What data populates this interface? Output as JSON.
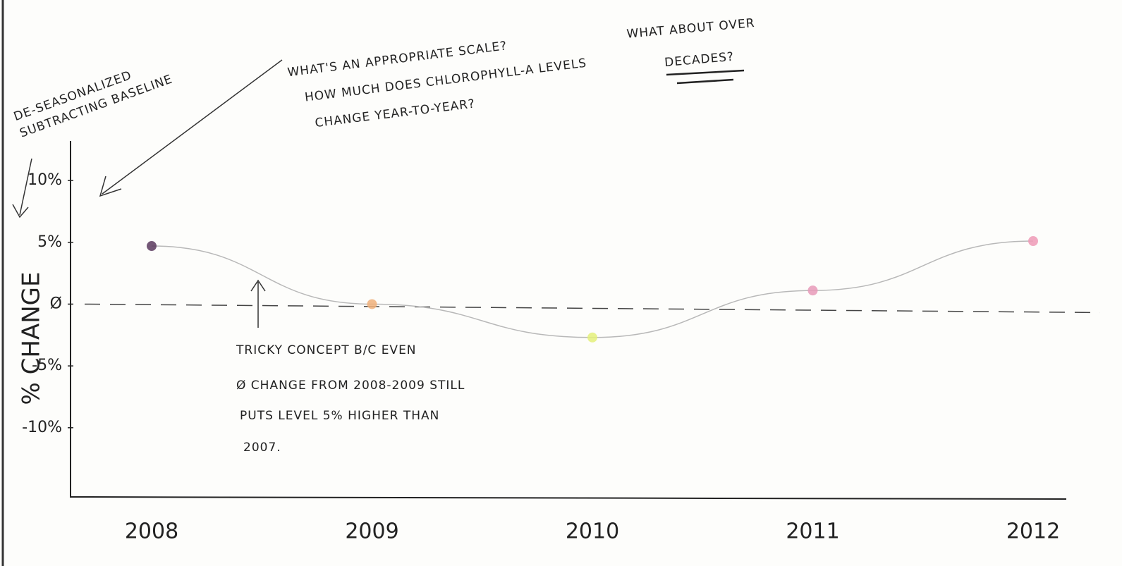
{
  "chart_data": {
    "type": "line",
    "y_label": "% CHANGE",
    "categories": [
      "2008",
      "2009",
      "2010",
      "2011",
      "2012"
    ],
    "series": [
      {
        "values": [
          4.7,
          0,
          -2.7,
          1.1,
          5.1
        ],
        "colors": [
          "#5a3a5e",
          "#f0b07a",
          "#e4f07a",
          "#e79ab8",
          "#ee9ab6"
        ],
        "color": "#b8b8b8"
      }
    ],
    "ylim": [
      -15.6,
      13.2
    ],
    "yticks": [
      {
        "value": 10,
        "label": "10%"
      },
      {
        "value": 5,
        "label": "5%"
      },
      {
        "value": 0,
        "label": "Ø"
      },
      {
        "value": -5,
        "label": "-5%"
      },
      {
        "value": -10,
        "label": "-10%"
      }
    ],
    "reference_line": {
      "value": 0,
      "style": "dashed"
    },
    "annotations": [
      {
        "lines": [
          "DE-SEASONALIZED",
          "SUBTRACTING BASELINE"
        ]
      },
      {
        "lines": [
          "WHAT'S AN APPROPRIATE SCALE?",
          "HOW MUCH DOES CHLOROPHYLL-A LEVELS",
          "CHANGE YEAR-TO-YEAR?"
        ]
      },
      {
        "lines": [
          "WHAT ABOUT OVER",
          "DECADES?"
        ]
      },
      {
        "lines": [
          "TRICKY CONCEPT B/C EVEN",
          "Ø CHANGE FROM 2008-2009 STILL",
          "PUTS LEVEL 5% HIGHER THAN",
          "2007."
        ]
      }
    ]
  }
}
